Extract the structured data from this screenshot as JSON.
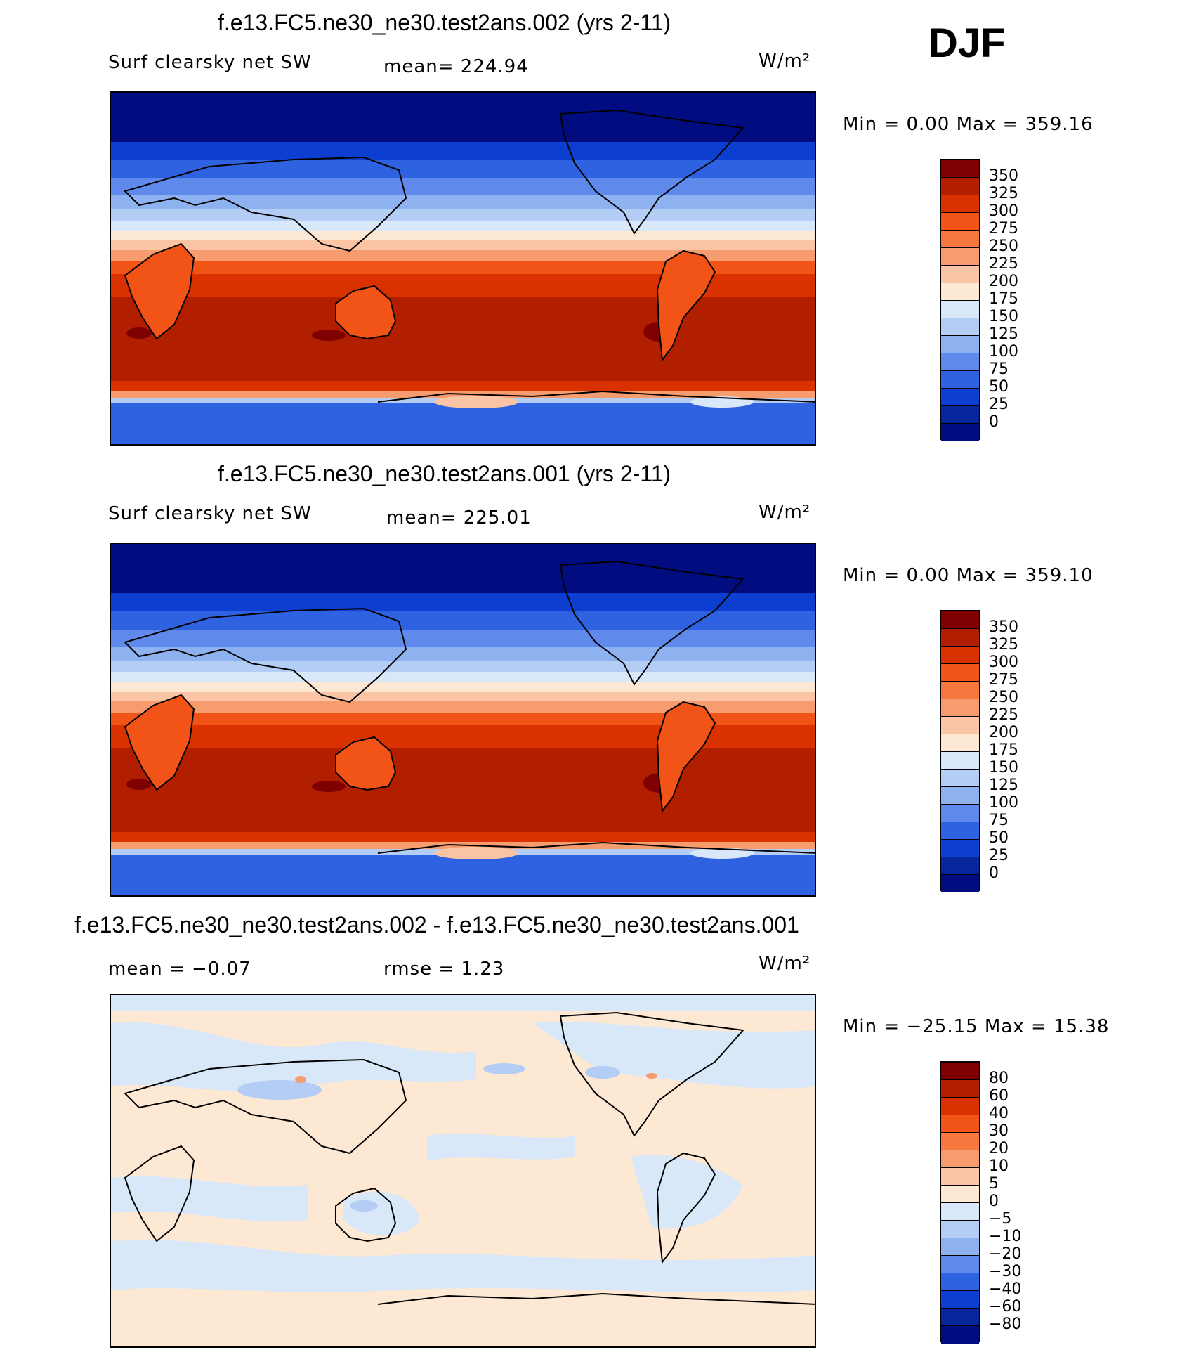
{
  "season": "DJF",
  "panels": [
    {
      "title": "f.e13.FC5.ne30_ne30.test2ans.002 (yrs 2-11)",
      "left_label": "Surf clearsky net SW",
      "mid_label": "mean= 224.94",
      "units": "W/m²",
      "minmax": "Min =    0.00 Max = 359.16",
      "colorbar": {
        "labels": [
          "350",
          "325",
          "300",
          "275",
          "250",
          "225",
          "200",
          "175",
          "150",
          "125",
          "100",
          "75",
          "50",
          "25",
          "0"
        ],
        "colors": [
          "#7f0000",
          "#b21e00",
          "#d93100",
          "#f25418",
          "#f7783e",
          "#f79c6e",
          "#fbc4a4",
          "#fde8d4",
          "#d8e8f8",
          "#b4cdf4",
          "#8eb1f0",
          "#5f89ea",
          "#2f62e0",
          "#0c3fd0",
          "#08269c",
          "#000c80"
        ]
      }
    },
    {
      "title": "f.e13.FC5.ne30_ne30.test2ans.001 (yrs 2-11)",
      "left_label": "Surf clearsky net SW",
      "mid_label": "mean= 225.01",
      "units": "W/m²",
      "minmax": "Min =    0.00 Max = 359.10",
      "colorbar": {
        "labels": [
          "350",
          "325",
          "300",
          "275",
          "250",
          "225",
          "200",
          "175",
          "150",
          "125",
          "100",
          "75",
          "50",
          "25",
          "0"
        ],
        "colors": [
          "#7f0000",
          "#b21e00",
          "#d93100",
          "#f25418",
          "#f7783e",
          "#f79c6e",
          "#fbc4a4",
          "#fde8d4",
          "#d8e8f8",
          "#b4cdf4",
          "#8eb1f0",
          "#5f89ea",
          "#2f62e0",
          "#0c3fd0",
          "#08269c",
          "#000c80"
        ]
      }
    },
    {
      "title": "f.e13.FC5.ne30_ne30.test2ans.002 - f.e13.FC5.ne30_ne30.test2ans.001",
      "left_label": "mean =   −0.07",
      "mid_label": "rmse =    1.23",
      "units": "W/m²",
      "minmax": "Min = −25.15 Max =  15.38",
      "colorbar": {
        "labels": [
          "80",
          "60",
          "40",
          "30",
          "20",
          "10",
          "5",
          "0",
          "−5",
          "−10",
          "−20",
          "−30",
          "−40",
          "−60",
          "−80"
        ],
        "colors": [
          "#7f0000",
          "#b21e00",
          "#d93100",
          "#f25418",
          "#f7783e",
          "#f79c6e",
          "#fbc4a4",
          "#fde8d4",
          "#d8e8f8",
          "#b4cdf4",
          "#8eb1f0",
          "#5f89ea",
          "#2f62e0",
          "#0c3fd0",
          "#08269c",
          "#000c80"
        ]
      }
    }
  ]
}
